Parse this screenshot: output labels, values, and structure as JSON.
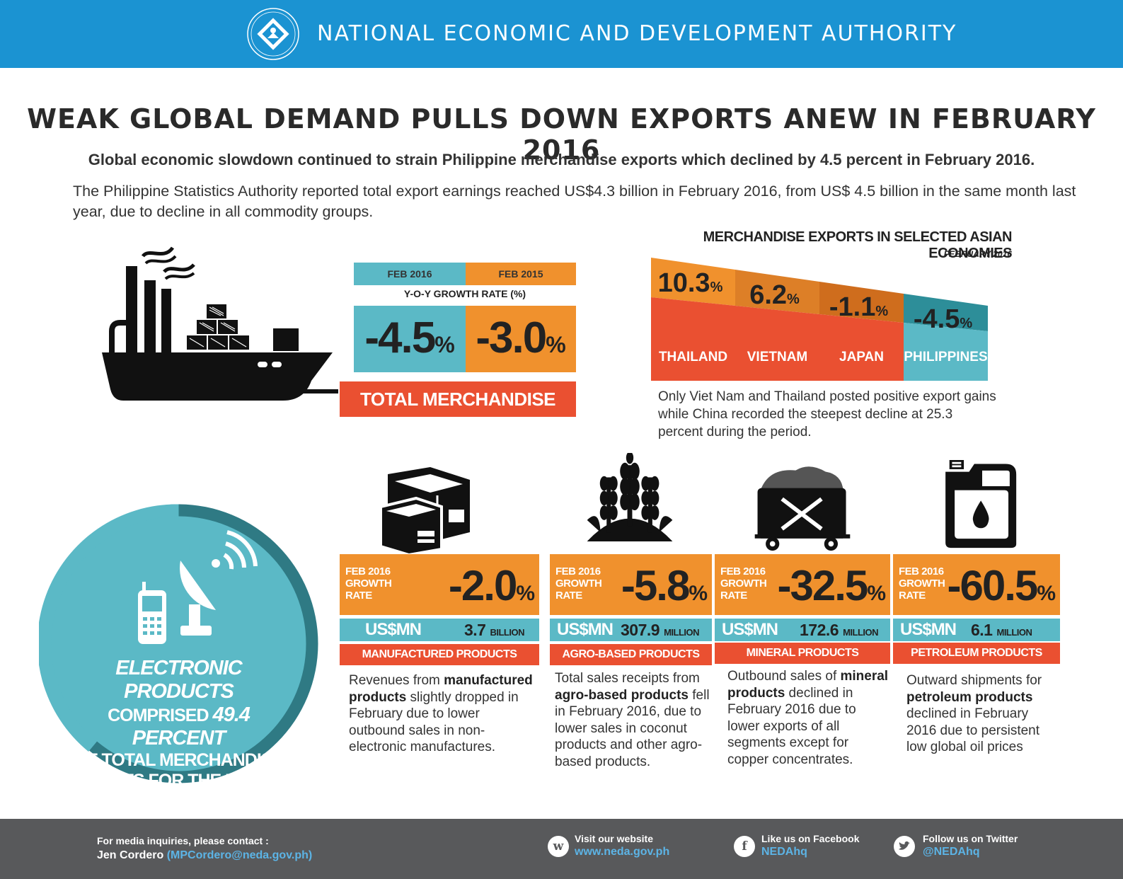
{
  "header": {
    "org_name": "NATIONAL ECONOMIC AND DEVELOPMENT AUTHORITY",
    "brand_color": "#1b93d2"
  },
  "title": "WEAK GLOBAL DEMAND PULLS DOWN EXPORTS ANEW IN FEBRUARY 2016",
  "lead": "Global economic slowdown continued to strain Philippine merchandise exports which declined by 4.5 percent in February 2016.",
  "body_text": "The Philippine Statistics Authority reported total export earnings reached US$4.3 billion in February 2016, from US$ 4.5 billion in the same month last year, due to decline in all commodity groups.",
  "total_exports": {
    "feb2016_label": "FEB 2016",
    "feb2015_label": "FEB 2015",
    "yoy_label": "Y-O-Y GROWTH RATE (%)",
    "feb2016_value": "-4.5",
    "feb2015_value": "-3.0",
    "pct": "%",
    "banner": "TOTAL MERCHANDISE EXPORTS"
  },
  "asian": {
    "title": "MERCHANDISE EXPORTS IN SELECTED ASIAN ECONOMIES",
    "subtitle": "FEBRUARY 2016",
    "note": "Only Viet Nam and Thailand posted positive export gains while China recorded the steepest decline at 25.3 percent during the period.",
    "countries": [
      {
        "name": "THAILAND",
        "value": "10.3",
        "top_color": "#f0912d",
        "bottom_color": "#ea5031"
      },
      {
        "name": "VIETNAM",
        "value": "6.2",
        "top_color": "#dd7f27",
        "bottom_color": "#ea5031"
      },
      {
        "name": "JAPAN",
        "value": "-1.1",
        "top_color": "#cf6d1d",
        "bottom_color": "#ea5031"
      },
      {
        "name": "PHILIPPINES",
        "value": "-4.5",
        "top_color": "#2d8e99",
        "bottom_color": "#5bb9c6"
      }
    ],
    "pct": "%"
  },
  "electronics": {
    "line1": "ELECTRONIC PRODUCTS",
    "line2a": "COMPRISED ",
    "line2b": "49.4 PERCENT",
    "line3": "OF TOTAL MERCHANDISE",
    "line4": "EXPORTS FOR THE PERIOD."
  },
  "products": [
    {
      "growth_label_1": "FEB 2016",
      "growth_label_2": "GROWTH",
      "growth_label_3": "RATE",
      "growth": "-2.0",
      "usd_label": "US$MN",
      "usd_value": "3.7",
      "usd_unit": "BILLION",
      "category": "MANUFACTURED PRODUCTS",
      "desc_a": "Revenues from ",
      "desc_b": "manufactured products",
      "desc_c": " slightly dropped in February due to lower outbound sales in non-electronic manufactures.",
      "icon": "boxes-icon"
    },
    {
      "growth_label_1": "FEB 2016",
      "growth_label_2": "GROWTH",
      "growth_label_3": "RATE",
      "growth": "-5.8",
      "usd_label": "US$MN",
      "usd_value": "307.9",
      "usd_unit": "MILLION",
      "category": "AGRO-BASED PRODUCTS",
      "desc_a": "Total sales receipts from ",
      "desc_b": "agro-based products",
      "desc_c": " fell in February 2016, due to lower sales in coconut products and other agro-based products.",
      "icon": "wheat-icon"
    },
    {
      "growth_label_1": "FEB 2016",
      "growth_label_2": "GROWTH",
      "growth_label_3": "RATE",
      "growth": "-32.5",
      "usd_label": "US$MN",
      "usd_value": "172.6",
      "usd_unit": "MILLION",
      "category": "MINERAL PRODUCTS",
      "desc_a": "Outbound sales of ",
      "desc_b": "mineral products",
      "desc_c": " declined in February 2016 due to lower exports of all segments except for copper concentrates.",
      "icon": "mine-cart-icon"
    },
    {
      "growth_label_1": "FEB 2016",
      "growth_label_2": "GROWTH",
      "growth_label_3": "RATE",
      "growth": "-60.5",
      "usd_label": "US$MN",
      "usd_value": "6.1",
      "usd_unit": "MILLION",
      "category": "PETROLEUM PRODUCTS",
      "desc_a": "Outward shipments for ",
      "desc_b": "petroleum products",
      "desc_c": " declined in February 2016 due to persistent low global oil prices",
      "icon": "oil-can-icon"
    }
  ],
  "pct": "%",
  "footer": {
    "contact_label": "For media inquiries, please contact :",
    "contact_name": "Jen Cordero",
    "contact_email": "(MPCordero@neda.gov.ph)",
    "website_label": "Visit our website",
    "website": "www.neda.gov.ph",
    "facebook_label": "Like us on Facebook",
    "facebook": "NEDAhq",
    "twitter_label": "Follow us on Twitter",
    "twitter": "@NEDAhq",
    "website_glyph": "w",
    "facebook_glyph": "f"
  },
  "colors": {
    "teal": "#5bb9c6",
    "orange": "#f0912d",
    "red": "#ea5031",
    "dark_teal": "#2f7a84",
    "footer_grey": "#58595b"
  }
}
